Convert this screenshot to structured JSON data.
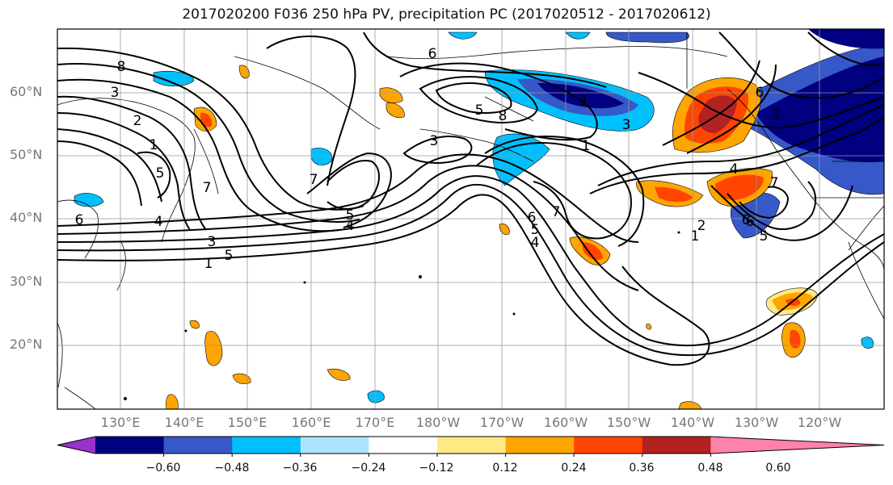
{
  "title": "2017020200 F036 250 hPa PV, precipitation PC (2017020512 - 2017020612)",
  "latitude_labels": [
    "60°N",
    "50°N",
    "40°N",
    "30°N",
    "20°N"
  ],
  "longitude_labels": [
    "130°E",
    "140°E",
    "150°E",
    "160°E",
    "170°E",
    "180°W",
    "170°W",
    "160°W",
    "150°W",
    "140°W",
    "130°W",
    "120°W"
  ],
  "colorbar": {
    "tick_labels": [
      "−0.60",
      "−0.48",
      "−0.36",
      "−0.24",
      "−0.12",
      "0.12",
      "0.24",
      "0.36",
      "0.48",
      "0.60"
    ],
    "colors": [
      "#9932cc",
      "#000080",
      "#3658c8",
      "#00bfff",
      "#aee3ff",
      "#ffffff",
      "#ffe985",
      "#ffa500",
      "#ff4500",
      "#b22222",
      "#ff82ab"
    ]
  },
  "contour_labels": [
    "8",
    "3",
    "2",
    "1",
    "5",
    "6",
    "4",
    "7",
    "3",
    "5",
    "1",
    "6",
    "5",
    "8",
    "7",
    "5",
    "4",
    "3",
    "1",
    "3",
    "1",
    "6",
    "5",
    "4",
    "7",
    "6",
    "4",
    "3",
    "6",
    "7",
    "2",
    "1",
    "6",
    "5"
  ]
}
